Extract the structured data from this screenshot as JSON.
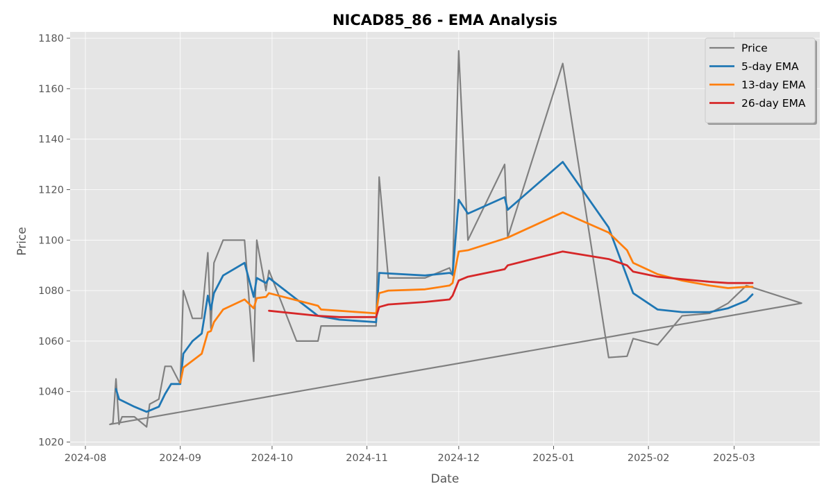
{
  "chart_data": {
    "type": "line",
    "title": "NICAD85_86 - EMA Analysis",
    "xlabel": "Date",
    "ylabel": "Price",
    "xlim": [
      "2024-07-27",
      "2025-03-29"
    ],
    "ylim": [
      1018.5,
      1182.5
    ],
    "x_ticks": [
      "2024-08-01",
      "2024-09-01",
      "2024-10-01",
      "2024-11-01",
      "2024-12-01",
      "2025-01-01",
      "2025-02-01",
      "2025-03-01"
    ],
    "x_tick_labels": [
      "2024-08",
      "2024-09",
      "2024-10",
      "2024-11",
      "2024-12",
      "2025-01",
      "2025-02",
      "2025-03"
    ],
    "y_ticks": [
      1020,
      1040,
      1060,
      1080,
      1100,
      1120,
      1140,
      1160,
      1180
    ],
    "grid": true,
    "legend_position": "top-right",
    "colors": {
      "background": "#E5E5E5",
      "grid": "#FFFFFF",
      "axis_text": "#555555"
    },
    "series": [
      {
        "name": "Price",
        "color": "#808080",
        "points": [
          [
            "2024-08-09",
            1027
          ],
          [
            "2024-08-10",
            1027.5
          ],
          [
            "2024-08-11",
            1045
          ],
          [
            "2024-08-12",
            1027
          ],
          [
            "2024-08-13",
            1030
          ],
          [
            "2024-08-17",
            1030
          ],
          [
            "2024-08-21",
            1026
          ],
          [
            "2024-08-22",
            1035
          ],
          [
            "2024-08-25",
            1037
          ],
          [
            "2024-08-27",
            1050
          ],
          [
            "2024-08-29",
            1050
          ],
          [
            "2024-09-01",
            1043
          ],
          [
            "2024-09-02",
            1080
          ],
          [
            "2024-09-05",
            1069
          ],
          [
            "2024-09-08",
            1069
          ],
          [
            "2024-09-10",
            1095
          ],
          [
            "2024-09-11",
            1065
          ],
          [
            "2024-09-12",
            1091
          ],
          [
            "2024-09-15",
            1100
          ],
          [
            "2024-09-22",
            1100
          ],
          [
            "2024-09-25",
            1052
          ],
          [
            "2024-09-26",
            1100
          ],
          [
            "2024-09-29",
            1080
          ],
          [
            "2024-09-30",
            1088
          ],
          [
            "2024-10-09",
            1060
          ],
          [
            "2024-10-16",
            1060
          ],
          [
            "2024-10-17",
            1066
          ],
          [
            "2024-11-04",
            1066
          ],
          [
            "2024-11-05",
            1125
          ],
          [
            "2024-11-08",
            1085
          ],
          [
            "2024-11-20",
            1085
          ],
          [
            "2024-11-28",
            1089
          ],
          [
            "2024-11-29",
            1086
          ],
          [
            "2024-12-01",
            1175
          ],
          [
            "2024-12-04",
            1100
          ],
          [
            "2024-12-16",
            1130
          ],
          [
            "2024-12-17",
            1101
          ],
          [
            "2025-01-04",
            1170
          ],
          [
            "2025-01-19",
            1053.5
          ],
          [
            "2025-01-25",
            1054
          ],
          [
            "2025-01-27",
            1061
          ],
          [
            "2025-02-04",
            1058.5
          ],
          [
            "2025-02-12",
            1070
          ],
          [
            "2025-02-21",
            1071
          ],
          [
            "2025-02-27",
            1075
          ],
          [
            "2025-03-05",
            1082
          ],
          [
            "2025-03-23",
            1075
          ],
          [
            "2024-08-09",
            1027
          ]
        ]
      },
      {
        "name": "5-day EMA",
        "color": "#1F77B4",
        "points": [
          [
            "2024-08-11",
            1041
          ],
          [
            "2024-08-12",
            1037
          ],
          [
            "2024-08-17",
            1034
          ],
          [
            "2024-08-21",
            1032
          ],
          [
            "2024-08-25",
            1034
          ],
          [
            "2024-08-27",
            1039
          ],
          [
            "2024-08-29",
            1043
          ],
          [
            "2024-09-01",
            1043
          ],
          [
            "2024-09-02",
            1055
          ],
          [
            "2024-09-05",
            1060
          ],
          [
            "2024-09-08",
            1063
          ],
          [
            "2024-09-10",
            1078
          ],
          [
            "2024-09-11",
            1072.5
          ],
          [
            "2024-09-12",
            1079
          ],
          [
            "2024-09-15",
            1086
          ],
          [
            "2024-09-22",
            1091
          ],
          [
            "2024-09-25",
            1077.5
          ],
          [
            "2024-09-26",
            1085
          ],
          [
            "2024-09-29",
            1083
          ],
          [
            "2024-09-30",
            1085
          ],
          [
            "2024-10-16",
            1070
          ],
          [
            "2024-10-23",
            1068.5
          ],
          [
            "2024-11-04",
            1067.5
          ],
          [
            "2024-11-05",
            1087
          ],
          [
            "2024-11-20",
            1086
          ],
          [
            "2024-11-28",
            1087
          ],
          [
            "2024-11-29",
            1086.5
          ],
          [
            "2024-12-01",
            1116
          ],
          [
            "2024-12-04",
            1110.5
          ],
          [
            "2024-12-16",
            1117
          ],
          [
            "2024-12-17",
            1112
          ],
          [
            "2025-01-04",
            1131
          ],
          [
            "2025-01-19",
            1105
          ],
          [
            "2025-01-27",
            1079
          ],
          [
            "2025-02-04",
            1072.5
          ],
          [
            "2025-02-12",
            1071.5
          ],
          [
            "2025-02-21",
            1071.5
          ],
          [
            "2025-02-27",
            1073
          ],
          [
            "2025-03-05",
            1076
          ],
          [
            "2025-03-07",
            1078.5
          ]
        ]
      },
      {
        "name": "13-day EMA",
        "color": "#FF7F0E",
        "points": [
          [
            "2024-09-01",
            1043.5
          ],
          [
            "2024-09-02",
            1049.5
          ],
          [
            "2024-09-08",
            1055
          ],
          [
            "2024-09-10",
            1063.5
          ],
          [
            "2024-09-11",
            1064
          ],
          [
            "2024-09-12",
            1067.5
          ],
          [
            "2024-09-15",
            1072.5
          ],
          [
            "2024-09-22",
            1076.5
          ],
          [
            "2024-09-25",
            1073
          ],
          [
            "2024-09-26",
            1077
          ],
          [
            "2024-09-29",
            1077.5
          ],
          [
            "2024-09-30",
            1079
          ],
          [
            "2024-10-16",
            1074
          ],
          [
            "2024-10-17",
            1072.5
          ],
          [
            "2024-10-23",
            1072
          ],
          [
            "2024-11-04",
            1071
          ],
          [
            "2024-11-05",
            1079
          ],
          [
            "2024-11-08",
            1080
          ],
          [
            "2024-11-20",
            1080.5
          ],
          [
            "2024-11-28",
            1082
          ],
          [
            "2024-11-29",
            1083
          ],
          [
            "2024-12-01",
            1095.5
          ],
          [
            "2024-12-04",
            1096
          ],
          [
            "2024-12-17",
            1101
          ],
          [
            "2025-01-04",
            1111
          ],
          [
            "2025-01-19",
            1103
          ],
          [
            "2025-01-25",
            1096
          ],
          [
            "2025-01-27",
            1091
          ],
          [
            "2025-02-04",
            1086.5
          ],
          [
            "2025-02-12",
            1084
          ],
          [
            "2025-02-21",
            1082
          ],
          [
            "2025-02-27",
            1081
          ],
          [
            "2025-03-05",
            1081.5
          ],
          [
            "2025-03-07",
            1081.5
          ]
        ]
      },
      {
        "name": "26-day EMA",
        "color": "#D62728",
        "points": [
          [
            "2024-09-30",
            1072
          ],
          [
            "2024-10-16",
            1070
          ],
          [
            "2024-10-23",
            1069.5
          ],
          [
            "2024-11-04",
            1069.5
          ],
          [
            "2024-11-05",
            1073.5
          ],
          [
            "2024-11-08",
            1074.5
          ],
          [
            "2024-11-20",
            1075.5
          ],
          [
            "2024-11-28",
            1076.5
          ],
          [
            "2024-11-29",
            1078
          ],
          [
            "2024-12-01",
            1084
          ],
          [
            "2024-12-04",
            1085.5
          ],
          [
            "2024-12-16",
            1088.5
          ],
          [
            "2024-12-17",
            1090
          ],
          [
            "2025-01-04",
            1095.5
          ],
          [
            "2025-01-19",
            1092.5
          ],
          [
            "2025-01-25",
            1090
          ],
          [
            "2025-01-27",
            1087.5
          ],
          [
            "2025-02-04",
            1085.5
          ],
          [
            "2025-02-12",
            1084.5
          ],
          [
            "2025-02-21",
            1083.5
          ],
          [
            "2025-02-27",
            1083
          ],
          [
            "2025-03-05",
            1083
          ],
          [
            "2025-03-07",
            1083
          ]
        ]
      }
    ]
  }
}
